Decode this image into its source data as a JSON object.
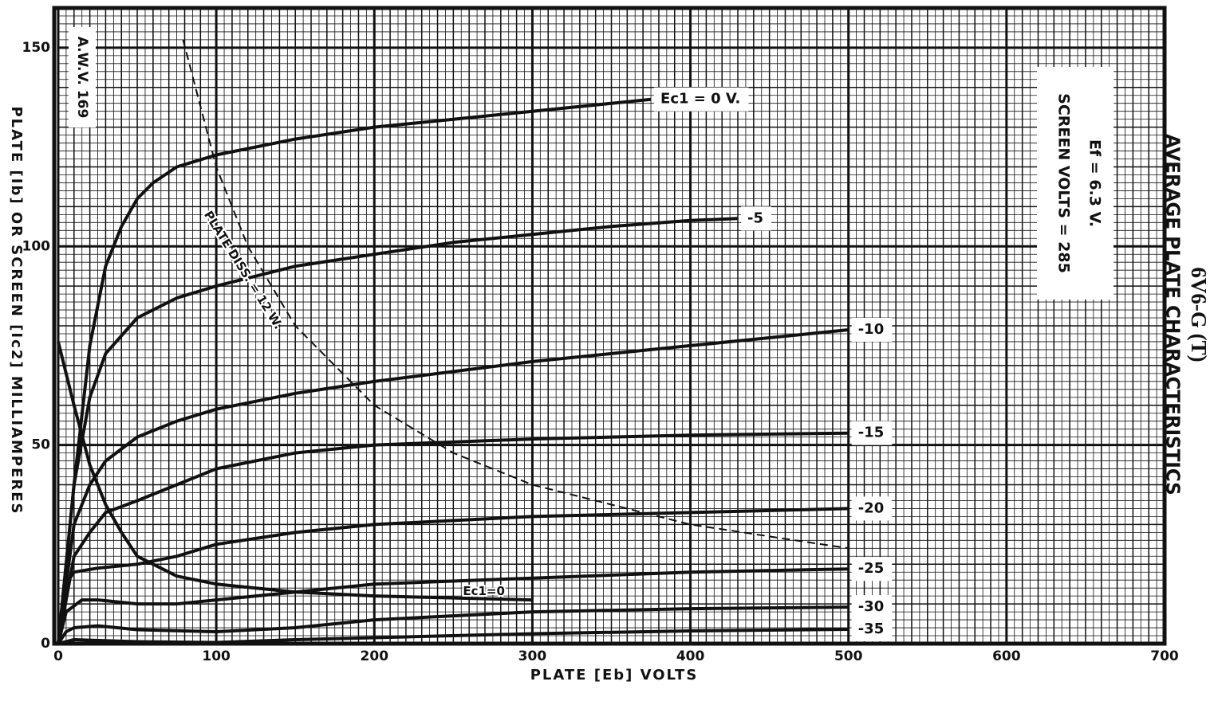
{
  "chart_data": {
    "type": "line",
    "title": "6V6-G (T)",
    "subtitle": "AVERAGE PLATE CHARACTERISTICS",
    "annotations": [
      "Ef = 6.3 V.",
      "SCREEN VOLTS = 285",
      "A.W.V. 169"
    ],
    "x_label": "PLATE [Eb] VOLTS",
    "y_label": "PLATE [Ib] OR SCREEN [Ic2] MILLIAMPERES",
    "xlim": [
      0,
      700
    ],
    "ylim": [
      0,
      160
    ],
    "xticks": [
      0,
      100,
      200,
      300,
      400,
      500,
      600,
      700
    ],
    "yticks": [
      0,
      50,
      100,
      150
    ],
    "grid": true,
    "series": [
      {
        "name": "Ec1 = 0 V.",
        "color": "#111111",
        "x": [
          0,
          10,
          20,
          30,
          40,
          50,
          60,
          75,
          100,
          150,
          200,
          250,
          300,
          350,
          375
        ],
        "values": [
          0,
          40,
          75,
          95,
          105,
          112,
          116,
          120,
          123,
          127,
          130,
          132,
          134,
          136,
          137
        ]
      },
      {
        "name": "-5",
        "color": "#111111",
        "x": [
          0,
          10,
          20,
          30,
          50,
          75,
          100,
          150,
          200,
          250,
          300,
          350,
          400,
          430
        ],
        "values": [
          0,
          40,
          62,
          73,
          82,
          87,
          90,
          95,
          98,
          101,
          103,
          105,
          106.5,
          107
        ]
      },
      {
        "name": "-10",
        "color": "#111111",
        "x": [
          0,
          10,
          20,
          30,
          50,
          75,
          100,
          150,
          200,
          250,
          300,
          350,
          400,
          450,
          500
        ],
        "values": [
          0,
          30,
          40,
          46,
          52,
          56,
          59,
          63,
          66,
          68.5,
          71,
          73,
          75,
          77,
          79
        ]
      },
      {
        "name": "-15",
        "color": "#111111",
        "x": [
          0,
          10,
          20,
          30,
          50,
          75,
          100,
          150,
          200,
          300,
          400,
          500
        ],
        "values": [
          0,
          22,
          28,
          33,
          36,
          40,
          44,
          48,
          50,
          51.5,
          52.5,
          53
        ]
      },
      {
        "name": "-20",
        "color": "#111111",
        "x": [
          0,
          5,
          10,
          25,
          50,
          75,
          100,
          150,
          200,
          300,
          400,
          500
        ],
        "values": [
          0,
          15,
          18,
          19,
          20,
          22,
          25,
          28,
          30,
          32,
          33,
          34
        ]
      },
      {
        "name": "-25",
        "color": "#111111",
        "x": [
          0,
          5,
          15,
          25,
          50,
          75,
          100,
          150,
          200,
          300,
          400,
          500
        ],
        "values": [
          0,
          8,
          11,
          11,
          10,
          10,
          11,
          13,
          15,
          16.5,
          18,
          18.8
        ]
      },
      {
        "name": "-30",
        "color": "#111111",
        "x": [
          0,
          5,
          10,
          25,
          50,
          100,
          150,
          200,
          300,
          400,
          500
        ],
        "values": [
          0,
          3,
          4,
          4.5,
          3.5,
          3,
          4,
          6,
          8,
          8.8,
          9.2
        ]
      },
      {
        "name": "-35",
        "color": "#111111",
        "x": [
          0,
          10,
          50,
          100,
          150,
          200,
          300,
          400,
          500
        ],
        "values": [
          0,
          1,
          0.5,
          0.3,
          1,
          1.5,
          2.5,
          3.2,
          3.6
        ]
      },
      {
        "name": "Ec1=0",
        "color": "#111111",
        "x": [
          0,
          10,
          20,
          30,
          40,
          50,
          75,
          100,
          150,
          200,
          250,
          300
        ],
        "values": [
          76,
          60,
          45,
          35,
          28,
          22,
          17,
          15,
          13,
          12,
          11.5,
          11
        ]
      },
      {
        "name": "PLATE DISS. = 12 W.",
        "color": "#111111",
        "dashed": true,
        "x": [
          79,
          100,
          120,
          150,
          200,
          250,
          300,
          400,
          500
        ],
        "values": [
          152,
          120,
          100,
          80,
          60,
          48,
          40,
          30,
          24
        ]
      }
    ]
  }
}
